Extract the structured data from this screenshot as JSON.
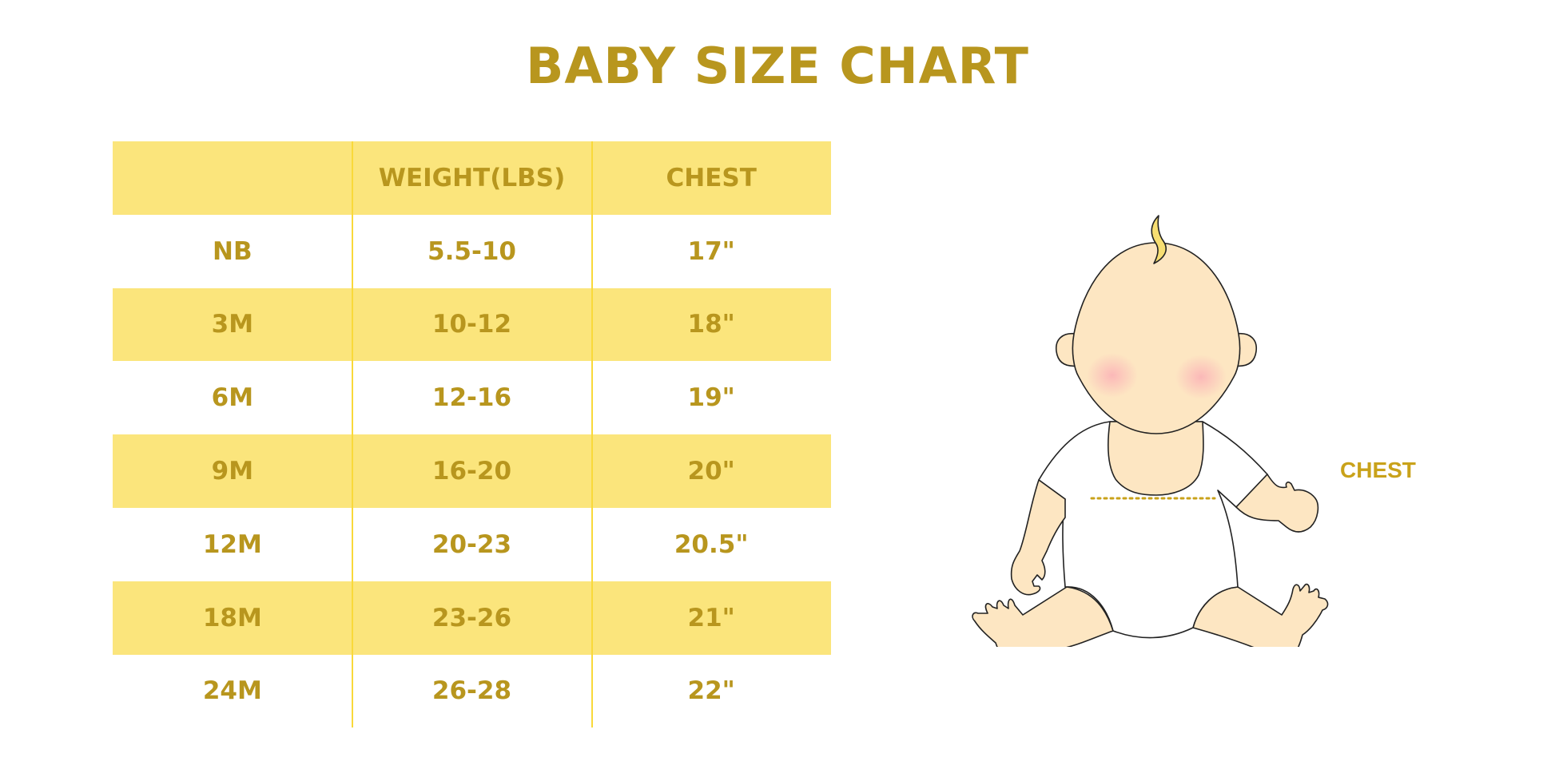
{
  "title": "BABY SIZE CHART",
  "chart_data": {
    "type": "table",
    "title": "BABY SIZE CHART",
    "columns": [
      "",
      "WEIGHT(LBS)",
      "CHEST"
    ],
    "rows": [
      [
        "NB",
        "5.5-10",
        "17\""
      ],
      [
        "3M",
        "10-12",
        "18\""
      ],
      [
        "6M",
        "12-16",
        "19\""
      ],
      [
        "9M",
        "16-20",
        "20\""
      ],
      [
        "12M",
        "20-23",
        "20.5\""
      ],
      [
        "18M",
        "23-26",
        "21\""
      ],
      [
        "24M",
        "26-28",
        "22\""
      ]
    ]
  },
  "illustration": {
    "chest_label": "CHEST",
    "icon": "baby-illustration"
  },
  "colors": {
    "text": "#B8961E",
    "band": "#FBE57C",
    "divider": "#F9D93A",
    "skin": "#FDE6C2",
    "cheek": "#FBB8B8"
  }
}
